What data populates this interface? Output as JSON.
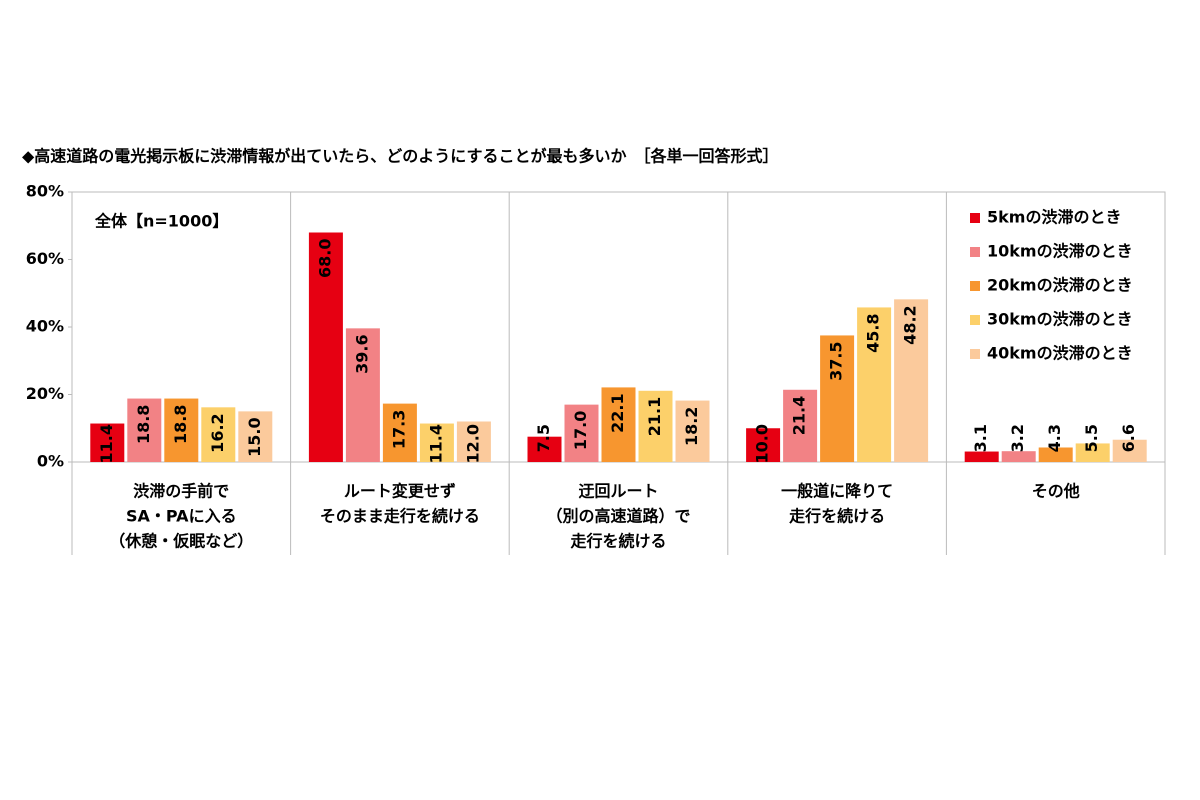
{
  "chart_data": {
    "type": "bar",
    "title": "◆高速道路の電光掲示板に渋滞情報が出ていたら、どのようにすることが最も多いか　［各単一回答形式］",
    "annotation": "全体【n=1000】",
    "categories": [
      [
        "渋滞の手前で",
        "SA・PAに入る",
        "（休憩・仮眠など）"
      ],
      [
        "ルート変更せず",
        "そのまま走行を続ける"
      ],
      [
        "迂回ルート",
        "（別の高速道路）で",
        "走行を続ける"
      ],
      [
        "一般道に降りて",
        "走行を続ける"
      ],
      [
        "その他"
      ]
    ],
    "series": [
      {
        "name": "5kmの渋滞のとき",
        "color": "#e60012",
        "values": [
          11.4,
          68.0,
          7.5,
          10.0,
          3.1
        ],
        "value_labels": [
          "11.4",
          "68.0",
          "7.5",
          "10.0",
          "3.1"
        ]
      },
      {
        "name": "10kmの渋滞のとき",
        "color": "#f28285",
        "values": [
          18.8,
          39.6,
          17.0,
          21.4,
          3.2
        ],
        "value_labels": [
          "18.8",
          "39.6",
          "17.0",
          "21.4",
          "3.2"
        ]
      },
      {
        "name": "20kmの渋滞のとき",
        "color": "#f7962f",
        "values": [
          18.8,
          17.3,
          22.1,
          37.5,
          4.3
        ],
        "value_labels": [
          "18.8",
          "17.3",
          "22.1",
          "37.5",
          "4.3"
        ]
      },
      {
        "name": "30kmの渋滞のとき",
        "color": "#fcd06a",
        "values": [
          16.2,
          11.4,
          21.1,
          45.8,
          5.5
        ],
        "value_labels": [
          "16.2",
          "11.4",
          "21.1",
          "45.8",
          "5.5"
        ]
      },
      {
        "name": "40kmの渋滞のとき",
        "color": "#fbca9c",
        "values": [
          15.0,
          12.0,
          18.2,
          48.2,
          6.6
        ],
        "value_labels": [
          "15.0",
          "12.0",
          "18.2",
          "48.2",
          "6.6"
        ]
      }
    ],
    "ylim": [
      0,
      80
    ],
    "yticks": [
      {
        "value": 0,
        "label": "0%"
      },
      {
        "value": 20,
        "label": "20%"
      },
      {
        "value": 40,
        "label": "40%"
      },
      {
        "value": 60,
        "label": "60%"
      },
      {
        "value": 80,
        "label": "80%"
      }
    ],
    "legend": "top-right"
  }
}
